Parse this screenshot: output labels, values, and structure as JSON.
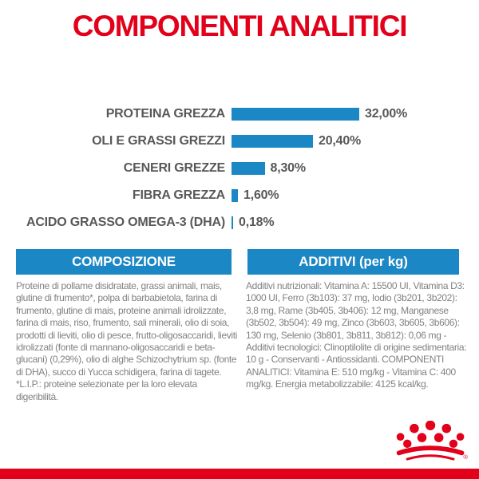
{
  "page": {
    "title": "COMPONENTI ANALITICI"
  },
  "colors": {
    "brand_red": "#e2001a",
    "brand_blue": "#1b87c4",
    "chart_label_gray": "#57585a",
    "body_text_gray": "#7f8184"
  },
  "chart_data": {
    "type": "bar",
    "orientation": "horizontal",
    "title": "COMPONENTI ANALITICI",
    "categories": [
      "PROTEINA GREZZA",
      "OLI E GRASSI GREZZI",
      "CENERI GREZZE",
      "FIBRA GREZZA",
      "ACIDO GRASSO OMEGA-3 (DHA)"
    ],
    "values": [
      32.0,
      20.4,
      8.3,
      1.6,
      0.18
    ],
    "value_labels": [
      "32,00%",
      "20,40%",
      "8,30%",
      "1,60%",
      "0,18%"
    ],
    "unit": "%",
    "xlim": [
      0,
      32
    ],
    "bar_color": "#1b87c4",
    "grid": false,
    "legend": false
  },
  "sections": {
    "composizione": {
      "header": "COMPOSIZIONE",
      "body": "Proteine di pollame disidratate, grassi animali, mais, glutine di frumento*, polpa di barbabietola, farina di frumento, glutine di mais, proteine animali idrolizzate, farina di mais, riso, frumento, sali minerali, olio di soia, prodotti di lieviti, olio di pesce, frutto-oligosaccaridi, lieviti idrolizzati (fonte di mannano-oligosaccaridi e beta-glucani) (0,29%), olio di alghe Schizochytrium sp. (fonte di DHA), succo di Yucca schidigera, farina di tagete.",
      "footnote": "*L.I.P.: proteine selezionate per la loro elevata digeribilità."
    },
    "additivi": {
      "header": "ADDITIVI (per kg)",
      "body": "Additivi nutrizionali: Vitamina A: 15500 UI, Vitamina D3: 1000 UI, Ferro (3b103): 37 mg, Iodio (3b201, 3b202): 3,8 mg, Rame (3b405, 3b406): 12 mg, Manganese (3b502, 3b504): 49 mg, Zinco (3b603, 3b605, 3b606): 130 mg, Selenio (3b801, 3b811, 3b812): 0,06 mg - Additivi tecnologici: Clinoptilolite di origine sedimentaria: 10 g - Conservanti - Antiossidanti. COMPONENTI ANALITICI: Vitamina E: 510 mg/kg - Vitamina C: 400 mg/kg. Energia metabolizzabile: 4125 kcal/kg."
    }
  },
  "footer": {
    "logo": "royal-canin-crown",
    "registered_mark": "®"
  }
}
